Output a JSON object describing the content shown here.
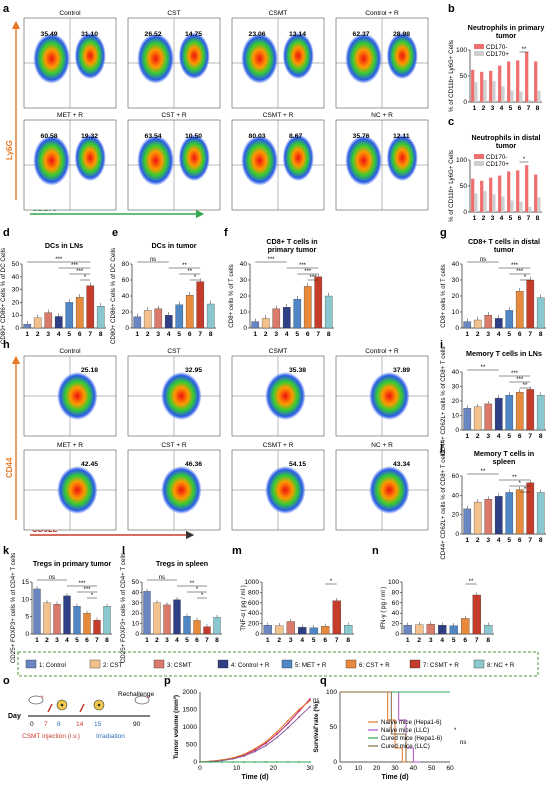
{
  "panel_letters": [
    "a",
    "b",
    "c",
    "d",
    "e",
    "f",
    "g",
    "h",
    "i",
    "j",
    "k",
    "l",
    "m",
    "n",
    "o",
    "p",
    "q"
  ],
  "colors": {
    "control": "#6a86c2",
    "cst": "#f3c18c",
    "csmt": "#d97a6b",
    "control_r": "#2e3f86",
    "met_r": "#4e86c6",
    "cst_r": "#e78a3b",
    "csmt_r": "#c63c2a",
    "nc_r": "#8ac8cf",
    "cd170_neg": "#ef6f6f",
    "cd170_pos": "#cfcfcf",
    "axis_orange": "#e87722",
    "axis_green": "#2fa84f"
  },
  "panel_a": {
    "y_axis": "Ly6G",
    "x_axis": "CD170",
    "plots": [
      {
        "label": "Control",
        "left": "35.49",
        "right": "31.10"
      },
      {
        "label": "CST",
        "left": "26.52",
        "right": "14.75"
      },
      {
        "label": "CSMT",
        "left": "23.06",
        "right": "13.14"
      },
      {
        "label": "Control + R",
        "left": "62.37",
        "right": "28.98"
      },
      {
        "label": "MET + R",
        "left": "60.58",
        "right": "19.32"
      },
      {
        "label": "CST + R",
        "left": "63.54",
        "right": "10.50"
      },
      {
        "label": "CSMT + R",
        "left": "80.03",
        "right": "8.67"
      },
      {
        "label": "NC + R",
        "left": "35.76",
        "right": "12.11"
      }
    ]
  },
  "panel_h": {
    "y_axis": "CD44",
    "x_axis": "CD62L",
    "plots": [
      {
        "label": "Control",
        "value": "25.18"
      },
      {
        "label": "CST",
        "value": "32.95"
      },
      {
        "label": "CSMT",
        "value": "35.38"
      },
      {
        "label": "Control + R",
        "value": "37.89"
      },
      {
        "label": "MET + R",
        "value": "42.45"
      },
      {
        "label": "CST + R",
        "value": "46.36"
      },
      {
        "label": "CSMT + R",
        "value": "54.15"
      },
      {
        "label": "NC + R",
        "value": "43.34"
      }
    ]
  },
  "chart_data": [
    {
      "id": "b",
      "type": "bar",
      "title": "Neutrophils in primary tumor",
      "ylabel": "% of CD11b+ Ly6G+ Cells",
      "categories": [
        "1",
        "2",
        "3",
        "4",
        "5",
        "6",
        "7",
        "8"
      ],
      "ylim": [
        0,
        100
      ],
      "yticks": [
        0,
        50,
        100
      ],
      "series": [
        {
          "name": "CD170-",
          "values": [
            62,
            58,
            60,
            70,
            78,
            80,
            96,
            78
          ]
        },
        {
          "name": "CD170+",
          "values": [
            38,
            42,
            40,
            30,
            22,
            20,
            4,
            22
          ]
        }
      ],
      "sig": [
        {
          "pair": [
            6,
            7
          ],
          "label": "**"
        }
      ]
    },
    {
      "id": "c",
      "type": "bar",
      "title": "Neutrophils in distal tumor",
      "ylabel": "% of CD11b+ Ly6G+ Cells",
      "categories": [
        "1",
        "2",
        "3",
        "4",
        "5",
        "6",
        "7",
        "8"
      ],
      "ylim": [
        0,
        100
      ],
      "yticks": [
        0,
        50,
        100
      ],
      "series": [
        {
          "name": "CD170-",
          "values": [
            64,
            60,
            66,
            70,
            78,
            80,
            90,
            72
          ]
        },
        {
          "name": "CD170+",
          "values": [
            36,
            40,
            34,
            30,
            22,
            20,
            10,
            28
          ]
        }
      ],
      "sig": [
        {
          "pair": [
            6,
            7
          ],
          "label": "*"
        }
      ]
    },
    {
      "id": "d",
      "type": "bar",
      "title": "DCs in LNs",
      "ylabel": "CD80+ CD86+ Cells % of DC Cells",
      "categories": [
        "1",
        "2",
        "3",
        "4",
        "5",
        "6",
        "7",
        "8"
      ],
      "ylim": [
        0,
        50
      ],
      "yticks": [
        0,
        10,
        20,
        30,
        40,
        50
      ],
      "values": [
        3,
        8,
        12,
        9,
        20,
        24,
        33,
        17
      ],
      "sig": [
        {
          "pair": [
            1,
            7
          ],
          "label": "***"
        },
        {
          "pair": [
            4,
            7
          ],
          "label": "***"
        },
        {
          "pair": [
            5,
            7
          ],
          "label": "***"
        },
        {
          "pair": [
            6,
            7
          ],
          "label": "*"
        }
      ]
    },
    {
      "id": "e",
      "type": "bar",
      "title": "DCs in tumor",
      "ylabel": "CD80+ CD86+ Cells % of DC Cells",
      "categories": [
        "1",
        "2",
        "3",
        "4",
        "5",
        "6",
        "7",
        "8"
      ],
      "ylim": [
        0,
        80
      ],
      "yticks": [
        0,
        20,
        40,
        60,
        80
      ],
      "values": [
        14,
        22,
        24,
        16,
        29,
        41,
        58,
        30
      ],
      "sig": [
        {
          "pair": [
            1,
            4
          ],
          "label": "ns"
        },
        {
          "pair": [
            4,
            7
          ],
          "label": "**"
        },
        {
          "pair": [
            5,
            7
          ],
          "label": "**"
        },
        {
          "pair": [
            6,
            7
          ],
          "label": "*"
        }
      ]
    },
    {
      "id": "f",
      "type": "bar",
      "title": "CD8+ T cells in primary tumor",
      "ylabel": "CD8+ cells % of T cells",
      "categories": [
        "1",
        "2",
        "3",
        "4",
        "5",
        "6",
        "7",
        "8"
      ],
      "ylim": [
        0,
        40
      ],
      "yticks": [
        0,
        10,
        20,
        30,
        40
      ],
      "values": [
        4,
        6,
        12,
        13,
        18,
        26,
        32,
        20
      ],
      "sig": [
        {
          "pair": [
            1,
            4
          ],
          "label": "***"
        },
        {
          "pair": [
            4,
            7
          ],
          "label": "***"
        },
        {
          "pair": [
            5,
            7
          ],
          "label": "***"
        },
        {
          "pair": [
            6,
            7
          ],
          "label": "***"
        }
      ]
    },
    {
      "id": "g",
      "type": "bar",
      "title": "CD8+ T cells in distal tumor",
      "ylabel": "CD8+ cells % of T cells",
      "categories": [
        "1",
        "2",
        "3",
        "4",
        "5",
        "6",
        "7",
        "8"
      ],
      "ylim": [
        0,
        40
      ],
      "yticks": [
        0,
        10,
        20,
        30,
        40
      ],
      "values": [
        4,
        5,
        8,
        6,
        11,
        23,
        30,
        19
      ],
      "sig": [
        {
          "pair": [
            1,
            4
          ],
          "label": "ns"
        },
        {
          "pair": [
            4,
            7
          ],
          "label": "***"
        },
        {
          "pair": [
            5,
            7
          ],
          "label": "***"
        },
        {
          "pair": [
            6,
            7
          ],
          "label": "*"
        }
      ]
    },
    {
      "id": "i",
      "type": "bar",
      "title": "Memory T cells in LNs",
      "ylabel": "CD44+ CD62L+ cells % of CD8+ T cells",
      "categories": [
        "1",
        "2",
        "3",
        "4",
        "5",
        "6",
        "7",
        "8"
      ],
      "ylim": [
        0,
        40
      ],
      "yticks": [
        0,
        10,
        20,
        30,
        40
      ],
      "values": [
        15,
        16,
        18,
        22,
        24,
        26,
        28,
        24
      ],
      "sig": [
        {
          "pair": [
            1,
            4
          ],
          "label": "**"
        },
        {
          "pair": [
            4,
            7
          ],
          "label": "***"
        },
        {
          "pair": [
            5,
            7
          ],
          "label": "***"
        },
        {
          "pair": [
            6,
            7
          ],
          "label": "**"
        }
      ]
    },
    {
      "id": "j",
      "type": "bar",
      "title": "Memory T cells in spleen",
      "ylabel": "CD44+ CD62L+ cells % of CD8+ T cells",
      "categories": [
        "1",
        "2",
        "3",
        "4",
        "5",
        "6",
        "7",
        "8"
      ],
      "ylim": [
        0,
        60
      ],
      "yticks": [
        0,
        20,
        40,
        60
      ],
      "values": [
        26,
        33,
        36,
        39,
        43,
        46,
        53,
        43
      ],
      "sig": [
        {
          "pair": [
            1,
            4
          ],
          "label": "**"
        },
        {
          "pair": [
            4,
            7
          ],
          "label": "**"
        },
        {
          "pair": [
            5,
            7
          ],
          "label": "*"
        },
        {
          "pair": [
            6,
            7
          ],
          "label": "*"
        }
      ]
    },
    {
      "id": "k",
      "type": "bar",
      "title": "Tregs in primary tumor",
      "ylabel": "CD25+ FOXP3+ cells % of CD4+ T cells",
      "categories": [
        "1",
        "2",
        "3",
        "4",
        "5",
        "6",
        "7",
        "8"
      ],
      "ylim": [
        0,
        15
      ],
      "yticks": [
        0,
        5,
        10,
        15
      ],
      "values": [
        13,
        9,
        8.6,
        11,
        8,
        6,
        4,
        8
      ],
      "sig": [
        {
          "pair": [
            1,
            4
          ],
          "label": "ns"
        },
        {
          "pair": [
            4,
            7
          ],
          "label": "***"
        },
        {
          "pair": [
            5,
            7
          ],
          "label": "***"
        },
        {
          "pair": [
            6,
            7
          ],
          "label": "*"
        }
      ]
    },
    {
      "id": "l",
      "type": "bar",
      "title": "Tregs in spleen",
      "ylabel": "CD25+ FOXP3+ cells % of CD4+ T cells",
      "categories": [
        "1",
        "2",
        "3",
        "4",
        "5",
        "6",
        "7",
        "8"
      ],
      "ylim": [
        0,
        50
      ],
      "yticks": [
        0,
        10,
        20,
        30,
        40,
        50
      ],
      "values": [
        41,
        30,
        28,
        33,
        17,
        13,
        7,
        16
      ],
      "sig": [
        {
          "pair": [
            1,
            4
          ],
          "label": "ns"
        },
        {
          "pair": [
            4,
            7
          ],
          "label": "**"
        },
        {
          "pair": [
            5,
            7
          ],
          "label": "*"
        },
        {
          "pair": [
            6,
            7
          ],
          "label": "*"
        }
      ]
    },
    {
      "id": "m",
      "type": "bar",
      "title": "",
      "ylabel": "TNF-α ( pg / ml )",
      "categories": [
        "1",
        "2",
        "3",
        "4",
        "5",
        "6",
        "7",
        "8"
      ],
      "ylim": [
        0,
        1000
      ],
      "yticks": [
        0,
        200,
        400,
        600,
        800,
        1000
      ],
      "values": [
        170,
        160,
        240,
        130,
        120,
        150,
        640,
        170
      ],
      "sig": [
        {
          "pair": [
            6,
            7
          ],
          "label": "*"
        }
      ]
    },
    {
      "id": "n",
      "type": "bar",
      "title": "",
      "ylabel": "IFN-γ ( pg / ml )",
      "categories": [
        "1",
        "2",
        "3",
        "4",
        "5",
        "6",
        "7",
        "8"
      ],
      "ylim": [
        0,
        100
      ],
      "yticks": [
        0,
        20,
        40,
        60,
        80,
        100
      ],
      "values": [
        17,
        18,
        19,
        17,
        16,
        30,
        75,
        17
      ],
      "sig": [
        {
          "pair": [
            6,
            7
          ],
          "label": "**"
        }
      ]
    },
    {
      "id": "p",
      "type": "line",
      "title": "",
      "xlabel": "Time (d)",
      "ylabel": "Tumor volume (mm³)",
      "xlim": [
        0,
        30
      ],
      "ylim": [
        0,
        2000
      ],
      "xticks": [
        0,
        10,
        20,
        30
      ],
      "yticks": [
        0,
        500,
        1000,
        1500,
        2000
      ],
      "x": [
        0,
        3,
        6,
        9,
        12,
        15,
        18,
        21,
        24,
        27,
        30
      ],
      "series": [
        {
          "values": [
            0,
            20,
            50,
            110,
            200,
            340,
            540,
            800,
            1100,
            1450,
            1800
          ],
          "color": "#c01f7a"
        },
        {
          "values": [
            0,
            25,
            60,
            120,
            220,
            380,
            580,
            860,
            1180,
            1500,
            1750
          ],
          "color": "#e87722"
        },
        {
          "values": [
            0,
            15,
            40,
            90,
            170,
            300,
            470,
            700,
            980,
            1280,
            1580
          ],
          "color": "#8b5a9e"
        },
        {
          "values": [
            0,
            0,
            0,
            0,
            0,
            0,
            0,
            0,
            0,
            0,
            0
          ],
          "color": "#2fa84f"
        }
      ],
      "annotations": [
        "ns",
        "*"
      ]
    },
    {
      "id": "q",
      "type": "line",
      "title": "",
      "xlabel": "Time (d)",
      "ylabel": "Survival rate (%)",
      "xlim": [
        0,
        60
      ],
      "ylim": [
        0,
        100
      ],
      "xticks": [
        0,
        10,
        20,
        30,
        40,
        50,
        60
      ],
      "yticks": [
        0,
        50,
        100
      ],
      "series": [
        {
          "name": "Naïve mice (Hepa1-6)",
          "x": [
            0,
            26,
            26,
            30,
            30,
            34,
            34,
            38
          ],
          "values": [
            100,
            100,
            60,
            60,
            20,
            20,
            0,
            0
          ],
          "color": "#e87722"
        },
        {
          "name": "Naïve mice (LLC)",
          "x": [
            0,
            32,
            32,
            36,
            36,
            40,
            40,
            44
          ],
          "values": [
            100,
            100,
            60,
            60,
            20,
            20,
            0,
            0
          ],
          "color": "#b44fd0"
        },
        {
          "name": "Cured mice (Hepa1-6)",
          "x": [
            0,
            60
          ],
          "values": [
            100,
            100
          ],
          "color": "#2fa84f"
        },
        {
          "name": "Cured mice (LLC)",
          "x": [
            0,
            28,
            28,
            36,
            36,
            40
          ],
          "values": [
            100,
            100,
            40,
            40,
            0,
            0
          ],
          "color": "#8a6a3e"
        }
      ],
      "annotations": [
        "*",
        "ns"
      ]
    }
  ],
  "group_legend": [
    {
      "label": "1: Control",
      "color": "#6a86c2"
    },
    {
      "label": "2: CST",
      "color": "#f3c18c"
    },
    {
      "label": "3: CSMT",
      "color": "#d97a6b"
    },
    {
      "label": "4: Control + R",
      "color": "#2e3f86"
    },
    {
      "label": "5: MET + R",
      "color": "#4e86c6"
    },
    {
      "label": "6: CST + R",
      "color": "#e78a3b"
    },
    {
      "label": "7: CSMT + R",
      "color": "#c63c2a"
    },
    {
      "label": "8: NC + R",
      "color": "#8ac8cf"
    }
  ],
  "panel_o": {
    "day_label": "Day",
    "days": [
      "0",
      "7",
      "8",
      "14",
      "15",
      "90"
    ],
    "injection": "CSMT injection (i.v.)",
    "irradiation": "Irradiation",
    "rechallenge": "Rechallenge"
  }
}
